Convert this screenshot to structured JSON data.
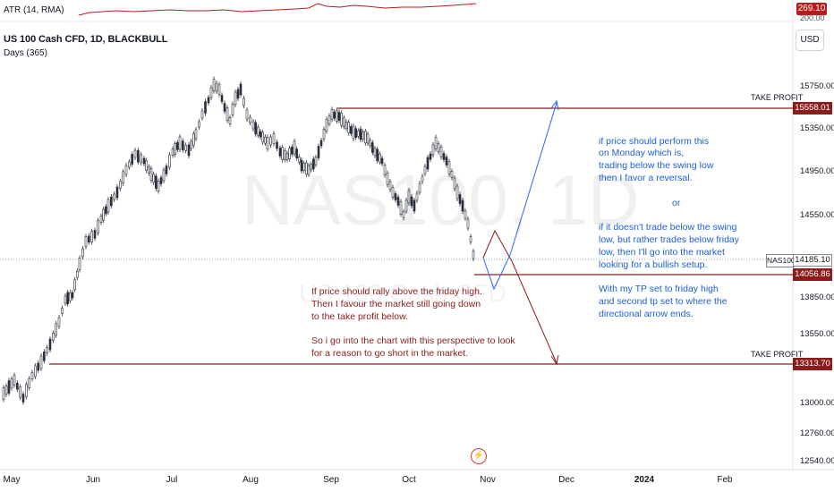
{
  "atr": {
    "label": "ATR (14, RMA)",
    "value": "269.10",
    "axis_tick": "200.00"
  },
  "header": {
    "title": "US 100 Cash CFD, 1D, BLACKBULL",
    "subtitle": "Days (365)",
    "currency": "USD"
  },
  "watermark": {
    "symbol": "NAS100, 1D",
    "name": "US 100 Cash CFD"
  },
  "y_axis": {
    "ticks": [
      "15750.00",
      "15350.00",
      "14950.00",
      "14550.00",
      "13850.00",
      "13550.00",
      "13000.00",
      "12760.00",
      "12540.00"
    ]
  },
  "x_axis": {
    "ticks": [
      "May",
      "Jun",
      "Jul",
      "Aug",
      "Sep",
      "Oct",
      "Nov",
      "Dec",
      "2024",
      "Feb"
    ],
    "bold": "2024"
  },
  "price_tags": {
    "tp_upper": "15558.01",
    "last_symbol": "NAS100",
    "last_price": "14185.10",
    "friday_low": "14056.86",
    "tp_lower": "13313.70"
  },
  "labels": {
    "take_profit_upper": "TAKE PROFIT",
    "take_profit_lower": "TAKE PROFIT"
  },
  "notes": {
    "red": [
      "If price should rally above the friday high.",
      "Then I favour the market still going down",
      "to the take profit below.",
      "",
      "So i go into the chart with this perspective to look",
      "for a reason to go short in the market."
    ],
    "blue_top": [
      "if price should perform this",
      "on Monday which is,",
      "trading below the swing low",
      "then I favor a reversal."
    ],
    "blue_or": "or",
    "blue_mid": [
      "if it  doesn't trade below the swing",
      "low, but rather trades below friday",
      "low, then I'll go into the market",
      "looking for a bullish setup."
    ],
    "blue_bottom": [
      "With my TP set to friday high",
      "and second tp set to where the",
      "directional arrow ends."
    ]
  },
  "colors": {
    "red_line": "#8b1c1c",
    "blue": "#2962ff",
    "candle": "#2a2e39"
  }
}
